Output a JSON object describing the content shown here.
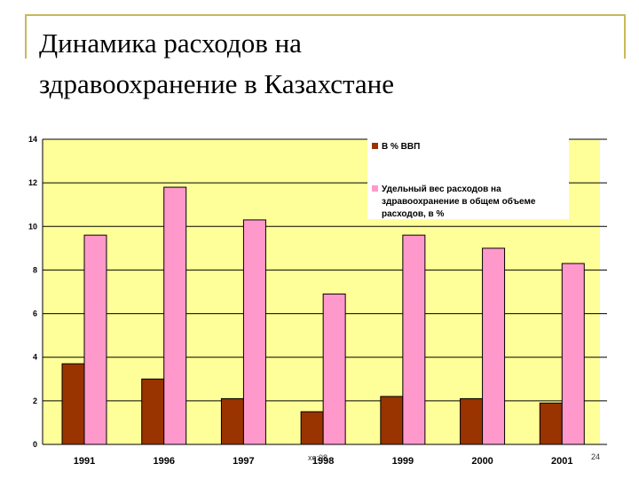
{
  "slide": {
    "title_line1": "Динамика расходов на",
    "title_line2": "здравоохранение в Казахстане",
    "page_number": "24",
    "overlay_text": "xo:08"
  },
  "colors": {
    "plot_bg": "#ffff99",
    "series1": "#993300",
    "series2": "#ff99cc",
    "frame": "#c8b85a"
  },
  "chart_data": {
    "type": "bar",
    "categories": [
      "1991",
      "1996",
      "1997",
      "1998",
      "1999",
      "2000",
      "2001"
    ],
    "series": [
      {
        "name": "В % ВВП",
        "values": [
          3.7,
          3.0,
          2.1,
          1.5,
          2.2,
          2.1,
          1.9
        ]
      },
      {
        "name": "Удельный вес расходов на здравоохранение в общем объеме расходов, в %",
        "values": [
          9.6,
          11.8,
          10.3,
          6.9,
          9.6,
          9.0,
          8.3
        ]
      }
    ],
    "yticks": [
      "0",
      "2",
      "4",
      "6",
      "8",
      "10",
      "12",
      "14"
    ],
    "ylim": [
      0,
      14
    ],
    "grid": true,
    "legend": "top-right"
  },
  "legend": {
    "item1": "В % ВВП",
    "item2_line1": "Удельный вес расходов на",
    "item2_line2": "здравоохранение в общем объеме",
    "item2_line3": "расходов, в %"
  }
}
